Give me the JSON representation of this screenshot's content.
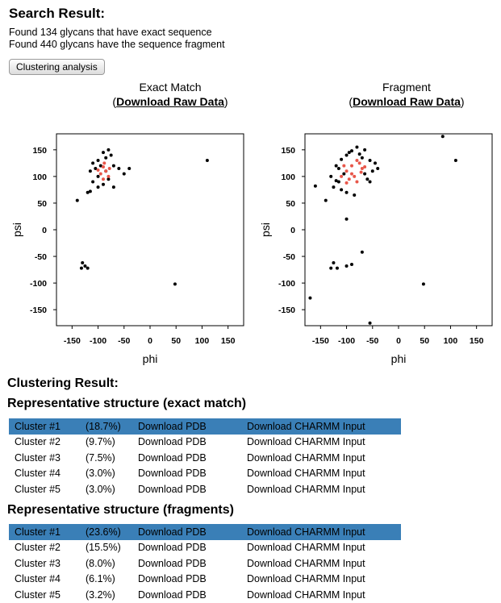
{
  "header": {
    "title": "Search Result:",
    "found_exact": "Found 134 glycans that have exact sequence",
    "found_fragment": "Found 440 glycans have the sequence fragment"
  },
  "button": {
    "label": "Clustering analysis"
  },
  "colors": {
    "highlight": "#3a7fb7",
    "point": "#000000",
    "cluster_point": "#e8574a"
  },
  "plots": [
    {
      "title": "Exact Match",
      "open_paren": "(",
      "close_paren": ")",
      "download_label": "Download Raw Data",
      "xlabel": "phi",
      "ylabel": "psi",
      "xticks": [
        "-150",
        "-100",
        "-50",
        "0",
        "50",
        "100",
        "150"
      ],
      "yticks": [
        "150",
        "100",
        "50",
        "0",
        "-50",
        "-100",
        "-150"
      ],
      "chart_data": {
        "type": "scatter",
        "xlabel": "phi",
        "ylabel": "psi",
        "xlim": [
          -180,
          180
        ],
        "ylim": [
          -180,
          180
        ],
        "series": [
          {
            "color": "#000000",
            "points": [
              [
                -80,
                150
              ],
              [
                -90,
                145
              ],
              [
                -75,
                140
              ],
              [
                -85,
                135
              ],
              [
                -100,
                130
              ],
              [
                -110,
                125
              ],
              [
                -70,
                120
              ],
              [
                -95,
                120
              ],
              [
                -105,
                115
              ],
              [
                -60,
                115
              ],
              [
                -40,
                115
              ],
              [
                -85,
                110
              ],
              [
                -115,
                110
              ],
              [
                -50,
                105
              ],
              [
                -100,
                100
              ],
              [
                -80,
                95
              ],
              [
                -110,
                90
              ],
              [
                -90,
                85
              ],
              [
                -100,
                80
              ],
              [
                -70,
                80
              ],
              [
                -120,
                70
              ],
              [
                -115,
                72
              ],
              [
                -140,
                55
              ],
              [
                110,
                130
              ],
              [
                -130,
                -62
              ],
              [
                -125,
                -68
              ],
              [
                -132,
                -72
              ],
              [
                -120,
                -72
              ],
              [
                48,
                -102
              ]
            ]
          },
          {
            "color": "#e8574a",
            "points": [
              [
                -90,
                118
              ],
              [
                -85,
                110
              ],
              [
                -95,
                105
              ],
              [
                -80,
                100
              ],
              [
                -90,
                95
              ],
              [
                -78,
                115
              ],
              [
                -100,
                112
              ],
              [
                -88,
                125
              ]
            ]
          }
        ]
      }
    },
    {
      "title": "Fragment",
      "open_paren": "(",
      "close_paren": ")",
      "download_label": "Download Raw Data",
      "xlabel": "phi",
      "ylabel": "psi",
      "xticks": [
        "-150",
        "-100",
        "-50",
        "0",
        "50",
        "100",
        "150"
      ],
      "yticks": [
        "150",
        "100",
        "50",
        "0",
        "-50",
        "-100",
        "-150"
      ],
      "chart_data": {
        "type": "scatter",
        "xlabel": "phi",
        "ylabel": "psi",
        "xlim": [
          -180,
          180
        ],
        "ylim": [
          -180,
          180
        ],
        "series": [
          {
            "color": "#000000",
            "points": [
              [
                -80,
                155
              ],
              [
                -90,
                148
              ],
              [
                -65,
                150
              ],
              [
                -100,
                140
              ],
              [
                -110,
                132
              ],
              [
                -70,
                135
              ],
              [
                -55,
                130
              ],
              [
                -120,
                120
              ],
              [
                -45,
                125
              ],
              [
                -50,
                110
              ],
              [
                -130,
                100
              ],
              [
                -40,
                115
              ],
              [
                -115,
                90
              ],
              [
                -125,
                80
              ],
              [
                -110,
                75
              ],
              [
                -100,
                70
              ],
              [
                -85,
                65
              ],
              [
                -60,
                95
              ],
              [
                -160,
                82
              ],
              [
                -140,
                55
              ],
              [
                -100,
                20
              ],
              [
                -70,
                -42
              ],
              [
                -90,
                -65
              ],
              [
                -100,
                -68
              ],
              [
                -125,
                -62
              ],
              [
                -130,
                -72
              ],
              [
                -118,
                -72
              ],
              [
                -170,
                -128
              ],
              [
                -55,
                -175
              ],
              [
                48,
                -102
              ],
              [
                85,
                175
              ],
              [
                110,
                130
              ],
              [
                -95,
                145
              ],
              [
                -75,
                142
              ],
              [
                -115,
                115
              ],
              [
                -105,
                105
              ],
              [
                -65,
                105
              ],
              [
                -55,
                90
              ],
              [
                -120,
                92
              ]
            ]
          },
          {
            "color": "#e8574a",
            "points": [
              [
                -80,
                130
              ],
              [
                -90,
                120
              ],
              [
                -100,
                110
              ],
              [
                -70,
                115
              ],
              [
                -85,
                100
              ],
              [
                -95,
                95
              ],
              [
                -75,
                125
              ],
              [
                -105,
                120
              ],
              [
                -65,
                118
              ],
              [
                -90,
                105
              ],
              [
                -80,
                90
              ],
              [
                -100,
                88
              ],
              [
                -110,
                100
              ],
              [
                -72,
                108
              ]
            ]
          }
        ]
      }
    }
  ],
  "clustering_title": "Clustering Result:",
  "exact_section": {
    "title": "Representative structure (exact match)",
    "rows": [
      {
        "cluster": "Cluster #1",
        "pct": "(18.7%)",
        "pdb": "Download PDB",
        "charmm": "Download CHARMM Input",
        "highlight": true
      },
      {
        "cluster": "Cluster #2",
        "pct": "(9.7%)",
        "pdb": "Download PDB",
        "charmm": "Download CHARMM Input",
        "highlight": false
      },
      {
        "cluster": "Cluster #3",
        "pct": "(7.5%)",
        "pdb": "Download PDB",
        "charmm": "Download CHARMM Input",
        "highlight": false
      },
      {
        "cluster": "Cluster #4",
        "pct": "(3.0%)",
        "pdb": "Download PDB",
        "charmm": "Download CHARMM Input",
        "highlight": false
      },
      {
        "cluster": "Cluster #5",
        "pct": "(3.0%)",
        "pdb": "Download PDB",
        "charmm": "Download CHARMM Input",
        "highlight": false
      }
    ]
  },
  "fragment_section": {
    "title": "Representative structure (fragments)",
    "rows": [
      {
        "cluster": "Cluster #1",
        "pct": "(23.6%)",
        "pdb": "Download PDB",
        "charmm": "Download CHARMM Input",
        "highlight": true
      },
      {
        "cluster": "Cluster #2",
        "pct": "(15.5%)",
        "pdb": "Download PDB",
        "charmm": "Download CHARMM Input",
        "highlight": false
      },
      {
        "cluster": "Cluster #3",
        "pct": "(8.0%)",
        "pdb": "Download PDB",
        "charmm": "Download CHARMM Input",
        "highlight": false
      },
      {
        "cluster": "Cluster #4",
        "pct": "(6.1%)",
        "pdb": "Download PDB",
        "charmm": "Download CHARMM Input",
        "highlight": false
      },
      {
        "cluster": "Cluster #5",
        "pct": "(3.2%)",
        "pdb": "Download PDB",
        "charmm": "Download CHARMM Input",
        "highlight": false
      }
    ]
  }
}
